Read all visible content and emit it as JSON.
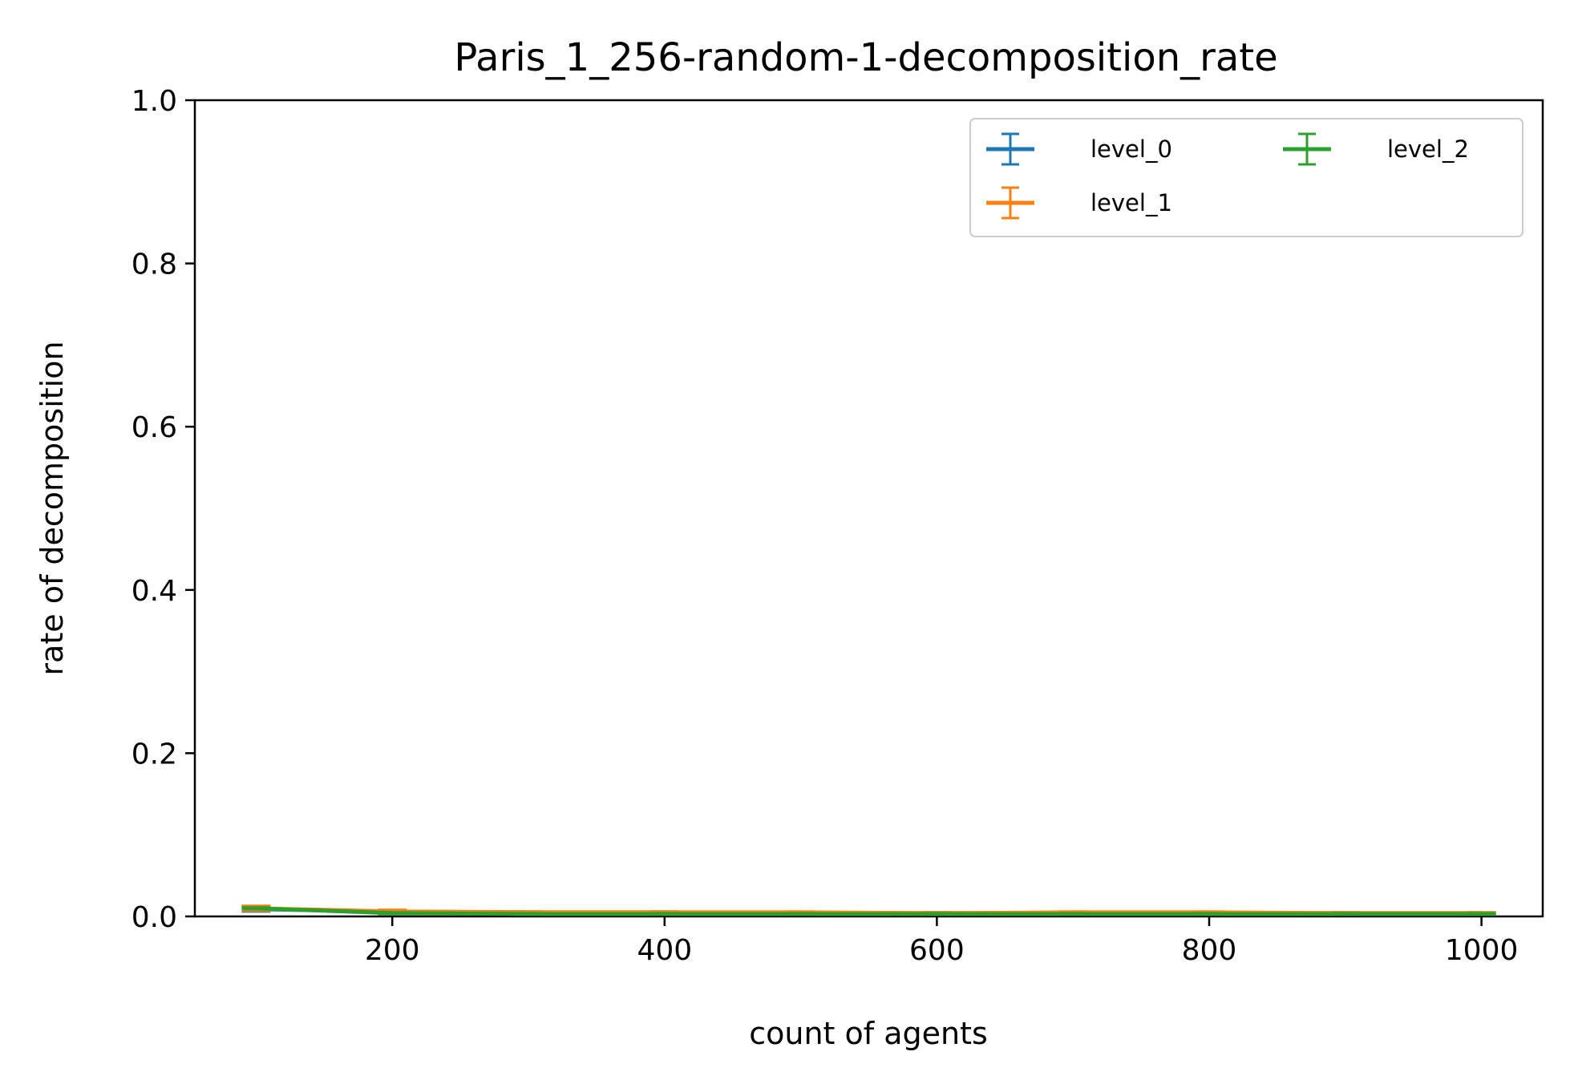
{
  "chart_data": {
    "type": "line",
    "title": "Paris_1_256-random-1-decomposition_rate",
    "xlabel": "count of agents",
    "ylabel": "rate of decomposition",
    "xlim": [
      55,
      1045
    ],
    "ylim": [
      0,
      1.0
    ],
    "xticks": [
      200,
      400,
      600,
      800,
      1000
    ],
    "yticks": [
      0.0,
      0.2,
      0.4,
      0.6,
      0.8,
      1.0
    ],
    "x": [
      100,
      200,
      300,
      400,
      500,
      600,
      700,
      800,
      900,
      1000
    ],
    "series": [
      {
        "name": "level_0",
        "color": "#1f77b4",
        "values": [
          0.009,
          0.006,
          0.005,
          0.005,
          0.004,
          0.004,
          0.004,
          0.004,
          0.004,
          0.004
        ],
        "errors": [
          0.003,
          0.002,
          0.001,
          0.001,
          0.001,
          0.001,
          0.001,
          0.001,
          0.001,
          0.001
        ]
      },
      {
        "name": "level_1",
        "color": "#ff7f0e",
        "values": [
          0.01,
          0.006,
          0.005,
          0.005,
          0.005,
          0.004,
          0.005,
          0.005,
          0.004,
          0.004
        ],
        "errors": [
          0.003,
          0.002,
          0.001,
          0.001,
          0.001,
          0.001,
          0.001,
          0.001,
          0.001,
          0.001
        ]
      },
      {
        "name": "level_2",
        "color": "#2ca02c",
        "values": [
          0.01,
          0.004,
          0.003,
          0.003,
          0.003,
          0.003,
          0.003,
          0.003,
          0.003,
          0.003
        ],
        "errors": [
          0.001,
          0.001,
          0.001,
          0.001,
          0.001,
          0.001,
          0.001,
          0.001,
          0.001,
          0.001
        ]
      }
    ],
    "grid": false,
    "legend": {
      "placement": "upper-right",
      "columns": 2
    }
  }
}
